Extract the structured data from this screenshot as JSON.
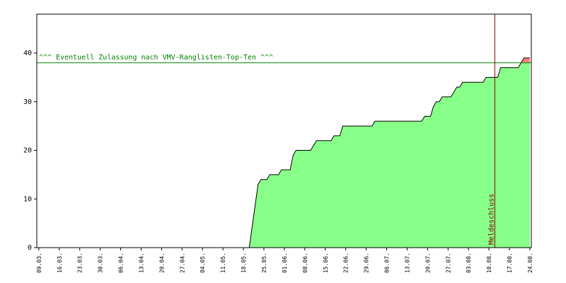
{
  "chart_data": {
    "type": "area",
    "x": [
      72,
      75,
      76,
      78,
      79,
      82,
      83,
      86,
      87,
      88,
      93,
      95,
      100,
      101,
      103,
      104,
      114,
      115,
      131,
      132,
      134,
      135,
      136,
      137,
      138,
      141,
      143,
      144,
      145,
      152,
      153,
      157,
      158,
      164,
      165,
      166,
      168
    ],
    "values": [
      0,
      13,
      14,
      14,
      15,
      15,
      16,
      16,
      19,
      20,
      20,
      22,
      22,
      23,
      23,
      25,
      25,
      26,
      26,
      27,
      27,
      29,
      30,
      30,
      31,
      31,
      33,
      33,
      34,
      34,
      35,
      35,
      37,
      37,
      38,
      39,
      39
    ],
    "color": "#88ff88",
    "over_color": "#ff8080",
    "xlim": [
      -0.7,
      168.5
    ],
    "ylim": [
      0,
      48
    ],
    "yticks": [
      0,
      10,
      20,
      30,
      40
    ],
    "xticks": [
      {
        "value": 0,
        "label": "09.03."
      },
      {
        "value": 7,
        "label": "16.03."
      },
      {
        "value": 14,
        "label": "23.03."
      },
      {
        "value": 21,
        "label": "30.03."
      },
      {
        "value": 28,
        "label": "06.04."
      },
      {
        "value": 35,
        "label": "13.04."
      },
      {
        "value": 42,
        "label": "20.04."
      },
      {
        "value": 49,
        "label": "27.04."
      },
      {
        "value": 56,
        "label": "04.05."
      },
      {
        "value": 63,
        "label": "11.05."
      },
      {
        "value": 70,
        "label": "18.05."
      },
      {
        "value": 77,
        "label": "25.05."
      },
      {
        "value": 84,
        "label": "01.06."
      },
      {
        "value": 91,
        "label": "08.06."
      },
      {
        "value": 98,
        "label": "15.06."
      },
      {
        "value": 105,
        "label": "22.06."
      },
      {
        "value": 112,
        "label": "29.06."
      },
      {
        "value": 119,
        "label": "06.07."
      },
      {
        "value": 126,
        "label": "13.07."
      },
      {
        "value": 133,
        "label": "20.07."
      },
      {
        "value": 140,
        "label": "27.07."
      },
      {
        "value": 147,
        "label": "03.08."
      },
      {
        "value": 154,
        "label": "10.08."
      },
      {
        "value": 161,
        "label": "17.08."
      },
      {
        "value": 168,
        "label": "24.08."
      }
    ],
    "threshold": {
      "value": 38,
      "label": "^^^ Eventuell Zulassung nach VMV-Ranglisten-Top-Ten ^^^",
      "color": "#008000"
    },
    "marker": {
      "value": 156,
      "label": "Meldeschluss",
      "color": "#800000"
    }
  }
}
